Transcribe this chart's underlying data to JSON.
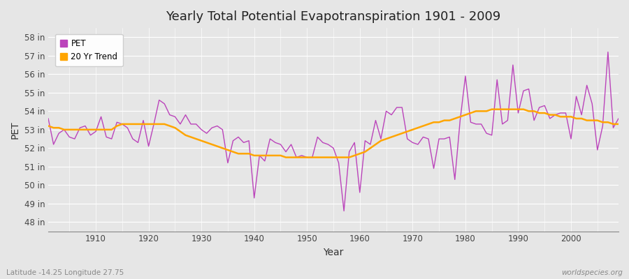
{
  "title": "Yearly Total Potential Evapotranspiration 1901 - 2009",
  "xlabel": "Year",
  "ylabel": "PET",
  "subtitle_left": "Latitude -14.25 Longitude 27.75",
  "subtitle_right": "worldspecies.org",
  "pet_color": "#BB44BB",
  "trend_color": "#FFA500",
  "background_color": "#E6E6E6",
  "plot_bg_color": "#E6E6E6",
  "grid_color": "#FFFFFF",
  "ylim": [
    47.5,
    58.5
  ],
  "yticks": [
    48,
    49,
    50,
    51,
    52,
    53,
    54,
    55,
    56,
    57,
    58
  ],
  "xlim": [
    1901,
    2009
  ],
  "xticks": [
    1910,
    1920,
    1930,
    1940,
    1950,
    1960,
    1970,
    1980,
    1990,
    2000
  ],
  "years": [
    1901,
    1902,
    1903,
    1904,
    1905,
    1906,
    1907,
    1908,
    1909,
    1910,
    1911,
    1912,
    1913,
    1914,
    1915,
    1916,
    1917,
    1918,
    1919,
    1920,
    1921,
    1922,
    1923,
    1924,
    1925,
    1926,
    1927,
    1928,
    1929,
    1930,
    1931,
    1932,
    1933,
    1934,
    1935,
    1936,
    1937,
    1938,
    1939,
    1940,
    1941,
    1942,
    1943,
    1944,
    1945,
    1946,
    1947,
    1948,
    1949,
    1950,
    1951,
    1952,
    1953,
    1954,
    1955,
    1956,
    1957,
    1958,
    1959,
    1960,
    1961,
    1962,
    1963,
    1964,
    1965,
    1966,
    1967,
    1968,
    1969,
    1970,
    1971,
    1972,
    1973,
    1974,
    1975,
    1976,
    1977,
    1978,
    1979,
    1980,
    1981,
    1982,
    1983,
    1984,
    1985,
    1986,
    1987,
    1988,
    1989,
    1990,
    1991,
    1992,
    1993,
    1994,
    1995,
    1996,
    1997,
    1998,
    1999,
    2000,
    2001,
    2002,
    2003,
    2004,
    2005,
    2006,
    2007,
    2008,
    2009
  ],
  "pet": [
    53.6,
    52.2,
    52.8,
    53.0,
    52.6,
    52.5,
    53.1,
    53.2,
    52.7,
    52.9,
    53.7,
    52.6,
    52.5,
    53.4,
    53.3,
    53.1,
    52.5,
    52.3,
    53.5,
    52.1,
    53.3,
    54.6,
    54.4,
    53.8,
    53.7,
    53.3,
    53.8,
    53.3,
    53.3,
    53.0,
    52.8,
    53.1,
    53.2,
    53.0,
    51.2,
    52.4,
    52.6,
    52.3,
    52.4,
    49.3,
    51.6,
    51.3,
    52.5,
    52.3,
    52.2,
    51.8,
    52.2,
    51.5,
    51.6,
    51.5,
    51.5,
    52.6,
    52.3,
    52.2,
    52.0,
    51.2,
    48.6,
    51.8,
    52.3,
    49.6,
    52.4,
    52.2,
    53.5,
    52.5,
    54.0,
    53.8,
    54.2,
    54.2,
    52.5,
    52.3,
    52.2,
    52.6,
    52.5,
    50.9,
    52.5,
    52.5,
    52.6,
    50.3,
    53.5,
    55.9,
    53.4,
    53.3,
    53.3,
    52.8,
    52.7,
    55.7,
    53.3,
    53.5,
    56.5,
    53.9,
    55.1,
    55.2,
    53.5,
    54.2,
    54.3,
    53.6,
    53.8,
    53.9,
    53.9,
    52.5,
    54.8,
    53.8,
    55.4,
    54.4,
    51.9,
    53.2,
    57.2,
    53.1,
    53.6
  ],
  "trend": [
    53.2,
    53.1,
    53.1,
    53.0,
    53.0,
    53.0,
    53.0,
    53.0,
    53.0,
    53.0,
    53.0,
    53.0,
    53.0,
    53.2,
    53.3,
    53.3,
    53.3,
    53.3,
    53.3,
    53.3,
    53.3,
    53.3,
    53.3,
    53.2,
    53.1,
    52.9,
    52.7,
    52.6,
    52.5,
    52.4,
    52.3,
    52.2,
    52.1,
    52.0,
    51.9,
    51.8,
    51.7,
    51.7,
    51.7,
    51.6,
    51.6,
    51.6,
    51.6,
    51.6,
    51.6,
    51.5,
    51.5,
    51.5,
    51.5,
    51.5,
    51.5,
    51.5,
    51.5,
    51.5,
    51.5,
    51.5,
    51.5,
    51.5,
    51.6,
    51.7,
    51.8,
    52.0,
    52.2,
    52.4,
    52.5,
    52.6,
    52.7,
    52.8,
    52.9,
    53.0,
    53.1,
    53.2,
    53.3,
    53.4,
    53.4,
    53.5,
    53.5,
    53.6,
    53.7,
    53.8,
    53.9,
    54.0,
    54.0,
    54.0,
    54.1,
    54.1,
    54.1,
    54.1,
    54.1,
    54.1,
    54.1,
    54.0,
    54.0,
    53.9,
    53.9,
    53.8,
    53.8,
    53.7,
    53.7,
    53.7,
    53.6,
    53.6,
    53.5,
    53.5,
    53.5,
    53.4,
    53.4,
    53.3,
    53.3
  ]
}
